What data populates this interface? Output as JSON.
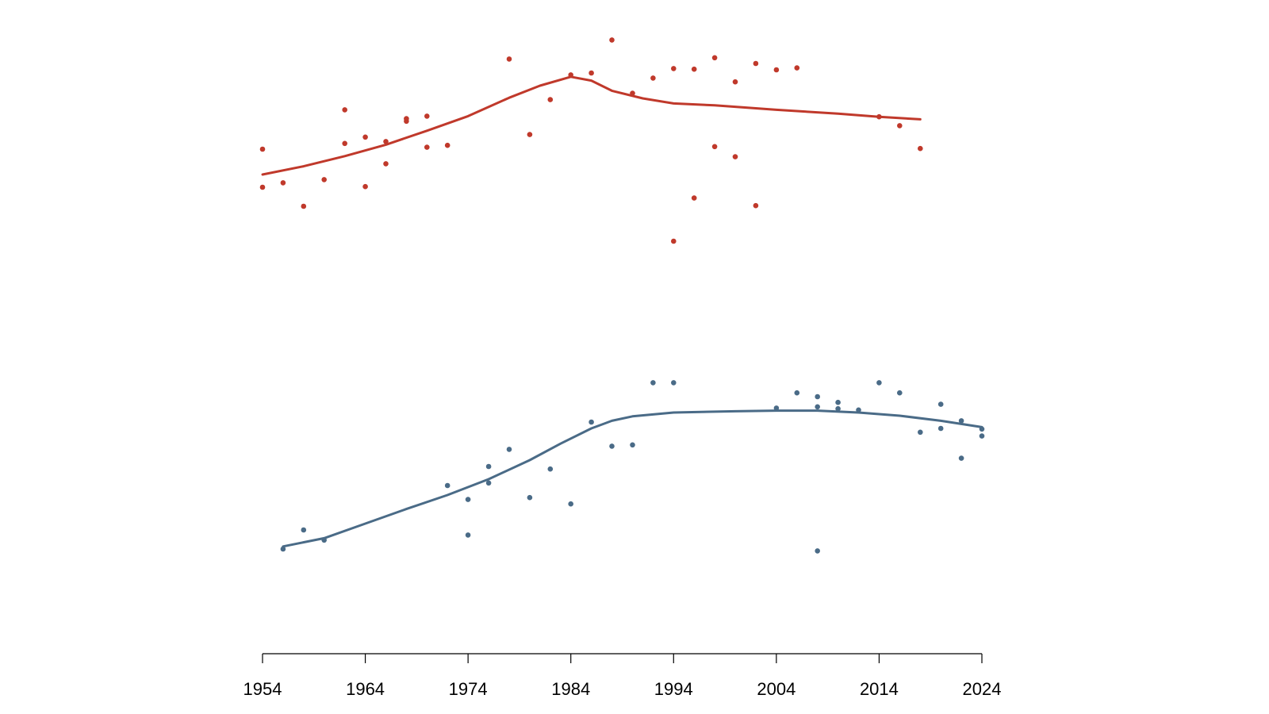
{
  "chart_data": {
    "type": "scatter",
    "title": "",
    "xlabel": "",
    "ylabel": "",
    "xlim": [
      1954,
      2024
    ],
    "x_ticks": [
      1954,
      1964,
      1974,
      1984,
      1994,
      2004,
      2014,
      2024
    ],
    "x_tick_labels": [
      "1954",
      "1964",
      "1974",
      "1984",
      "1994",
      "2004",
      "2014",
      "2024"
    ],
    "ylim": [
      0,
      100
    ],
    "grid": false,
    "legend": "none",
    "series": [
      {
        "color": "#C0392B",
        "points": [
          [
            1954,
            79.0
          ],
          [
            1954,
            73.0
          ],
          [
            1956,
            73.7
          ],
          [
            1958,
            70.0
          ],
          [
            1960,
            74.2
          ],
          [
            1962,
            85.2
          ],
          [
            1962,
            79.9
          ],
          [
            1964,
            73.1
          ],
          [
            1964,
            80.9
          ],
          [
            1966,
            76.7
          ],
          [
            1966,
            80.2
          ],
          [
            1968,
            83.4
          ],
          [
            1968,
            83.8
          ],
          [
            1970,
            84.2
          ],
          [
            1970,
            79.3
          ],
          [
            1972,
            79.6
          ],
          [
            1978,
            93.2
          ],
          [
            1980,
            81.3
          ],
          [
            1982,
            86.8
          ],
          [
            1984,
            90.7
          ],
          [
            1986,
            91.0
          ],
          [
            1988,
            96.2
          ],
          [
            1990,
            87.8
          ],
          [
            1992,
            90.2
          ],
          [
            1994,
            91.7
          ],
          [
            1994,
            64.5
          ],
          [
            1996,
            91.6
          ],
          [
            1996,
            71.3
          ],
          [
            1998,
            93.4
          ],
          [
            1998,
            79.4
          ],
          [
            2000,
            89.6
          ],
          [
            2000,
            77.8
          ],
          [
            2002,
            92.5
          ],
          [
            2002,
            70.1
          ],
          [
            2004,
            91.5
          ],
          [
            2006,
            91.8
          ],
          [
            2014,
            84.1
          ],
          [
            2016,
            82.7
          ],
          [
            2018,
            79.1
          ]
        ],
        "trend": [
          [
            1954,
            75.0
          ],
          [
            1958,
            76.3
          ],
          [
            1962,
            77.9
          ],
          [
            1966,
            79.7
          ],
          [
            1970,
            81.9
          ],
          [
            1974,
            84.2
          ],
          [
            1978,
            87.1
          ],
          [
            1981,
            89.0
          ],
          [
            1984,
            90.4
          ],
          [
            1986,
            89.8
          ],
          [
            1988,
            88.2
          ],
          [
            1991,
            87.0
          ],
          [
            1994,
            86.2
          ],
          [
            1998,
            85.9
          ],
          [
            2004,
            85.2
          ],
          [
            2010,
            84.6
          ],
          [
            2014,
            84.1
          ],
          [
            2018,
            83.7
          ]
        ]
      },
      {
        "color": "#4A6B87",
        "points": [
          [
            1956,
            16.0
          ],
          [
            1958,
            19.0
          ],
          [
            1960,
            17.4
          ],
          [
            1972,
            26.0
          ],
          [
            1974,
            18.2
          ],
          [
            1974,
            23.8
          ],
          [
            1976,
            26.4
          ],
          [
            1976,
            29.0
          ],
          [
            1978,
            31.7
          ],
          [
            1980,
            24.1
          ],
          [
            1982,
            28.6
          ],
          [
            1984,
            23.1
          ],
          [
            1986,
            36.0
          ],
          [
            1988,
            32.2
          ],
          [
            1990,
            32.4
          ],
          [
            1992,
            42.2
          ],
          [
            1994,
            42.2
          ],
          [
            2004,
            38.2
          ],
          [
            2006,
            40.6
          ],
          [
            2008,
            40.0
          ],
          [
            2008,
            38.4
          ],
          [
            2008,
            15.7
          ],
          [
            2010,
            39.1
          ],
          [
            2010,
            38.1
          ],
          [
            2012,
            37.9
          ],
          [
            2014,
            42.2
          ],
          [
            2016,
            40.6
          ],
          [
            2018,
            34.4
          ],
          [
            2020,
            38.8
          ],
          [
            2020,
            35.0
          ],
          [
            2022,
            36.2
          ],
          [
            2022,
            30.3
          ],
          [
            2024,
            34.9
          ],
          [
            2024,
            33.8
          ]
        ],
        "trend": [
          [
            1956,
            16.4
          ],
          [
            1960,
            17.7
          ],
          [
            1964,
            20.0
          ],
          [
            1968,
            22.3
          ],
          [
            1972,
            24.5
          ],
          [
            1976,
            27.0
          ],
          [
            1980,
            30.0
          ],
          [
            1983,
            32.6
          ],
          [
            1986,
            35.0
          ],
          [
            1988,
            36.2
          ],
          [
            1990,
            36.9
          ],
          [
            1994,
            37.5
          ],
          [
            2000,
            37.7
          ],
          [
            2004,
            37.8
          ],
          [
            2008,
            37.8
          ],
          [
            2012,
            37.5
          ],
          [
            2016,
            37.0
          ],
          [
            2020,
            36.2
          ],
          [
            2024,
            35.2
          ]
        ]
      }
    ]
  }
}
